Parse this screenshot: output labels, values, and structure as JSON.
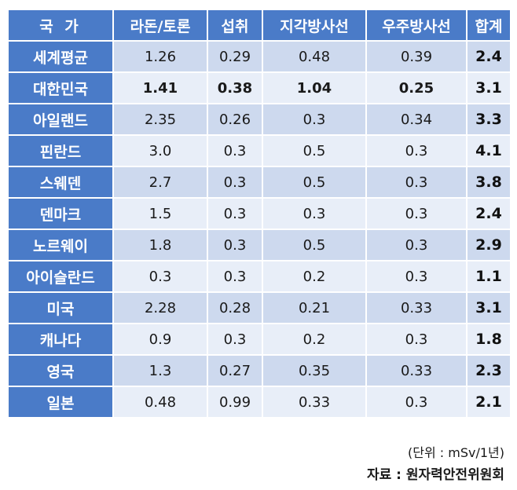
{
  "table": {
    "headers": [
      "국 가",
      "라돈/토론",
      "섭취",
      "지각방사선",
      "우주방사선",
      "합계"
    ],
    "rows": [
      {
        "country": "세계평균",
        "values": [
          "1.26",
          "0.29",
          "0.48",
          "0.39"
        ],
        "total": "2.4"
      },
      {
        "country": "대한민국",
        "values": [
          "1.41",
          "0.38",
          "1.04",
          "0.25"
        ],
        "total": "3.1"
      },
      {
        "country": "아일랜드",
        "values": [
          "2.35",
          "0.26",
          "0.3",
          "0.34"
        ],
        "total": "3.3"
      },
      {
        "country": "핀란드",
        "values": [
          "3.0",
          "0.3",
          "0.5",
          "0.3"
        ],
        "total": "4.1"
      },
      {
        "country": "스웨덴",
        "values": [
          "2.7",
          "0.3",
          "0.5",
          "0.3"
        ],
        "total": "3.8"
      },
      {
        "country": "덴마크",
        "values": [
          "1.5",
          "0.3",
          "0.3",
          "0.3"
        ],
        "total": "2.4"
      },
      {
        "country": "노르웨이",
        "values": [
          "1.8",
          "0.3",
          "0.5",
          "0.3"
        ],
        "total": "2.9"
      },
      {
        "country": "아이슬란드",
        "values": [
          "0.3",
          "0.3",
          "0.2",
          "0.3"
        ],
        "total": "1.1"
      },
      {
        "country": "미국",
        "values": [
          "2.28",
          "0.28",
          "0.21",
          "0.33"
        ],
        "total": "3.1"
      },
      {
        "country": "캐나다",
        "values": [
          "0.9",
          "0.3",
          "0.2",
          "0.3"
        ],
        "total": "1.8"
      },
      {
        "country": "영국",
        "values": [
          "1.3",
          "0.27",
          "0.35",
          "0.33"
        ],
        "total": "2.3"
      },
      {
        "country": "일본",
        "values": [
          "0.48",
          "0.99",
          "0.33",
          "0.3"
        ],
        "total": "2.1"
      }
    ]
  },
  "footer": {
    "unit": "(단위 : mSv/1년)",
    "source": "자료 : 원자력안전위원회"
  },
  "colors": {
    "header_bg": "#4A7BC8",
    "row_dark": "#CDD9EE",
    "row_light": "#E8EEF8"
  }
}
